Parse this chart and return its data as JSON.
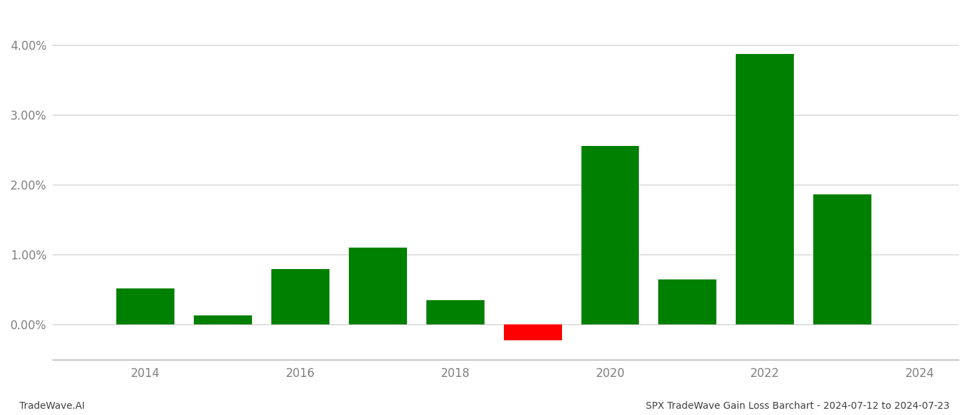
{
  "years": [
    2014,
    2015,
    2016,
    2017,
    2018,
    2019,
    2020,
    2021,
    2022,
    2023
  ],
  "values": [
    0.0052,
    0.0013,
    0.008,
    0.011,
    0.0035,
    -0.0022,
    0.0256,
    0.0065,
    0.0388,
    0.0187
  ],
  "colors": [
    "#008000",
    "#008000",
    "#008000",
    "#008000",
    "#008000",
    "#ff0000",
    "#008000",
    "#008000",
    "#008000",
    "#008000"
  ],
  "title": "SPX TradeWave Gain Loss Barchart - 2024-07-12 to 2024-07-23",
  "footer_left": "TradeWave.AI",
  "ylim_min": -0.005,
  "ylim_max": 0.045,
  "yticks": [
    0.0,
    0.01,
    0.02,
    0.03,
    0.04
  ],
  "ytick_labels": [
    "0.00%",
    "1.00%",
    "2.00%",
    "3.00%",
    "4.00%"
  ],
  "xticks": [
    2014,
    2016,
    2018,
    2020,
    2022,
    2024
  ],
  "xtick_labels": [
    "2014",
    "2016",
    "2018",
    "2020",
    "2022",
    "2024"
  ],
  "xlim_min": 2012.8,
  "xlim_max": 2024.5,
  "background_color": "#ffffff",
  "grid_color": "#cccccc",
  "bar_width": 0.75,
  "tick_label_color": "#808080",
  "title_color": "#404040",
  "footer_color": "#404040",
  "tick_fontsize": 12,
  "title_fontsize": 10,
  "footer_fontsize": 10
}
